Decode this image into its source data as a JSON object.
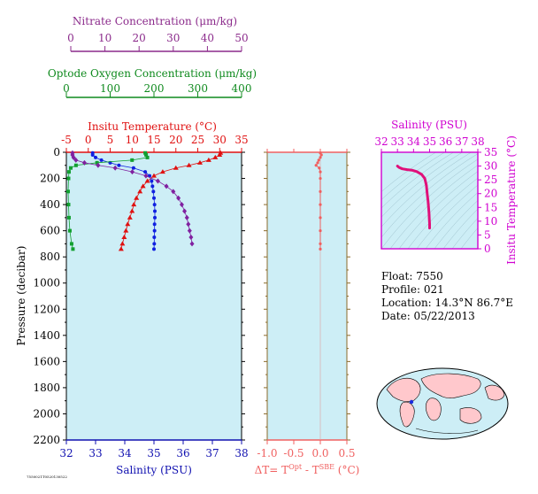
{
  "page": {
    "footer_code": "7550021T0520130522",
    "info": {
      "float": "Float:  7550",
      "profile": "Profile:  021",
      "location": "Location:  14.3°N  86.7°E",
      "date": "Date:  05/22/2013"
    }
  },
  "colors": {
    "nitrate": "#8b2a8b",
    "oxygen": "#0f8a1e",
    "temperature": "#e01010",
    "salinity_axis": "#1010b0",
    "salinity_inset": "#d000d0",
    "delta_t": "#f06060",
    "plot_bg": "#cdeef6",
    "profile_salinity": "#1020e0",
    "profile_temp": "#e01010",
    "profile_oxygen": "#12a030",
    "profile_nitrate": "#8020a0",
    "ts_line": "#e0107a"
  },
  "chart_data": [
    {
      "id": "main",
      "type": "scatter",
      "ylabel": "Pressure (decibar)",
      "ylim": [
        2200,
        0
      ],
      "yticks": [
        "0",
        "200",
        "400",
        "600",
        "800",
        "1000",
        "1200",
        "1400",
        "1600",
        "1800",
        "2000",
        "2200"
      ],
      "axes": {
        "salinity": {
          "label": "Salinity (PSU)",
          "range": [
            32,
            38
          ],
          "ticks": [
            "32",
            "33",
            "34",
            "35",
            "36",
            "37",
            "38"
          ]
        },
        "temperature": {
          "label": "Insitu Temperature (°C)",
          "range": [
            -5,
            35
          ],
          "ticks": [
            "-5",
            "0",
            "5",
            "10",
            "15",
            "20",
            "25",
            "30",
            "35"
          ]
        },
        "oxygen": {
          "label": "Optode Oxygen Concentration (μm/kg)",
          "range": [
            0,
            400
          ],
          "ticks": [
            "0",
            "100",
            "200",
            "300",
            "400"
          ]
        },
        "nitrate": {
          "label": "Nitrate Concentration (μm/kg)",
          "range": [
            0,
            50
          ],
          "ticks": [
            "0",
            "10",
            "20",
            "30",
            "40",
            "50"
          ]
        }
      },
      "series": [
        {
          "key": "salinity",
          "axis": "salinity",
          "marker": "circle",
          "p": [
            5,
            20,
            40,
            60,
            80,
            100,
            120,
            150,
            180,
            220,
            260,
            300,
            350,
            400,
            450,
            500,
            550,
            600,
            650,
            700,
            740
          ],
          "v": [
            32.9,
            32.9,
            33.0,
            33.2,
            33.5,
            33.8,
            34.3,
            34.7,
            34.85,
            34.92,
            34.95,
            34.98,
            35.0,
            35.02,
            35.03,
            35.03,
            35.02,
            35.02,
            35.01,
            35.01,
            35.0
          ]
        },
        {
          "key": "temperature",
          "axis": "temperature",
          "marker": "triangle",
          "p": [
            5,
            20,
            40,
            60,
            80,
            100,
            120,
            150,
            180,
            220,
            260,
            300,
            350,
            400,
            450,
            500,
            550,
            600,
            650,
            700,
            740
          ],
          "v": [
            30.2,
            30.0,
            29.0,
            27.5,
            25.5,
            23.0,
            20.0,
            17.0,
            15.0,
            13.5,
            12.5,
            11.8,
            11.0,
            10.4,
            10.0,
            9.5,
            9.0,
            8.6,
            8.2,
            7.8,
            7.5
          ]
        },
        {
          "key": "oxygen",
          "axis": "oxygen",
          "marker": "square",
          "p": [
            5,
            20,
            40,
            60,
            80,
            100,
            120,
            150,
            200,
            300,
            400,
            500,
            600,
            700,
            740
          ],
          "v": [
            180,
            182,
            185,
            150,
            70,
            22,
            10,
            6,
            5,
            4,
            5,
            6,
            8,
            12,
            15
          ]
        },
        {
          "key": "nitrate",
          "axis": "nitrate",
          "marker": "diamond",
          "p": [
            5,
            20,
            40,
            60,
            80,
            100,
            120,
            150,
            180,
            220,
            260,
            300,
            350,
            400,
            450,
            500,
            550,
            600,
            650,
            700
          ],
          "v": [
            0.5,
            0.5,
            0.8,
            1.5,
            4.0,
            8.0,
            13.0,
            18.0,
            22.0,
            25.5,
            28.0,
            30.0,
            31.5,
            32.5,
            33.3,
            34.0,
            34.4,
            34.8,
            35.2,
            35.5
          ]
        }
      ]
    },
    {
      "id": "delta",
      "type": "line",
      "xlabel": "ΔT= T^Opt - T^SBE (°C)",
      "xlim": [
        -1.0,
        0.5
      ],
      "xticks": [
        "-1.0",
        "-0.5",
        "0.0",
        "0.5"
      ],
      "ylim": [
        2200,
        0
      ],
      "series": [
        {
          "p": [
            5,
            20,
            40,
            60,
            80,
            100,
            120,
            150,
            200,
            300,
            400,
            500,
            600,
            700,
            740
          ],
          "v": [
            0.0,
            0.02,
            0.0,
            -0.03,
            -0.05,
            -0.08,
            -0.02,
            0.0,
            0.0,
            0.0,
            0.0,
            0.0,
            0.0,
            0.0,
            0.0
          ]
        }
      ]
    },
    {
      "id": "ts",
      "type": "line",
      "xlabel": "Salinity (PSU)",
      "ylabel": "Insitu Temperature (°C)",
      "xlim": [
        32,
        38
      ],
      "ylim": [
        0,
        35
      ],
      "xticks": [
        "32",
        "33",
        "34",
        "35",
        "36",
        "37",
        "38"
      ],
      "yticks": [
        "0",
        "5",
        "10",
        "15",
        "20",
        "25",
        "30",
        "35"
      ],
      "series": [
        {
          "s": [
            33.0,
            33.1,
            33.3,
            33.6,
            33.9,
            34.2,
            34.5,
            34.7,
            34.8,
            34.85,
            34.9,
            34.93,
            34.95,
            34.97,
            34.98,
            34.99,
            35.0,
            35.0,
            35.0
          ],
          "t": [
            30.0,
            29.5,
            29.0,
            28.7,
            28.5,
            28.0,
            27.0,
            25.5,
            23.0,
            20.0,
            17.5,
            15.5,
            14.0,
            12.5,
            11.0,
            10.0,
            9.0,
            8.0,
            7.5
          ]
        }
      ]
    }
  ]
}
